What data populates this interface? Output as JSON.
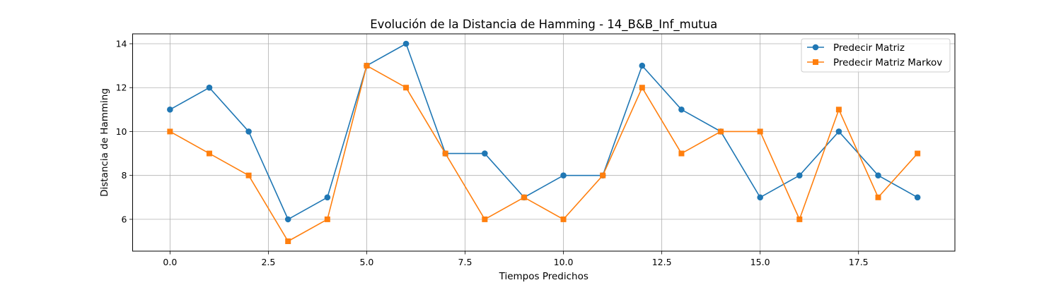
{
  "chart_data": {
    "type": "line",
    "title": "Evolución de la Distancia de Hamming - 14_B&B_Inf_mutua",
    "xlabel": "Tiempos Predichos",
    "ylabel": "Distancia de Hamming",
    "xlim": [
      -0.95,
      19.95
    ],
    "ylim": [
      4.55,
      14.45
    ],
    "xticks": [
      0,
      2.5,
      5,
      7.5,
      10,
      12.5,
      15,
      17.5
    ],
    "xtick_labels": [
      "0.0",
      "2.5",
      "5.0",
      "7.5",
      "10.0",
      "12.5",
      "15.0",
      "17.5"
    ],
    "yticks": [
      6,
      8,
      10,
      12,
      14
    ],
    "ytick_labels": [
      "6",
      "8",
      "10",
      "12",
      "14"
    ],
    "grid": true,
    "legend_position": "top-right",
    "x": [
      0,
      1,
      2,
      3,
      4,
      5,
      6,
      7,
      8,
      9,
      10,
      11,
      12,
      13,
      14,
      15,
      16,
      17,
      18,
      19
    ],
    "series": [
      {
        "name": "Predecir Matriz",
        "color": "#1f77b4",
        "marker": "circle",
        "values": [
          11,
          12,
          10,
          6,
          7,
          13,
          14,
          9,
          9,
          7,
          8,
          8,
          13,
          11,
          10,
          7,
          8,
          10,
          8,
          7
        ]
      },
      {
        "name": "Predecir Matriz Markov",
        "color": "#ff7f0e",
        "marker": "square",
        "values": [
          10,
          9,
          8,
          5,
          6,
          13,
          12,
          9,
          6,
          7,
          6,
          8,
          12,
          9,
          10,
          10,
          6,
          11,
          7,
          9
        ]
      }
    ]
  }
}
